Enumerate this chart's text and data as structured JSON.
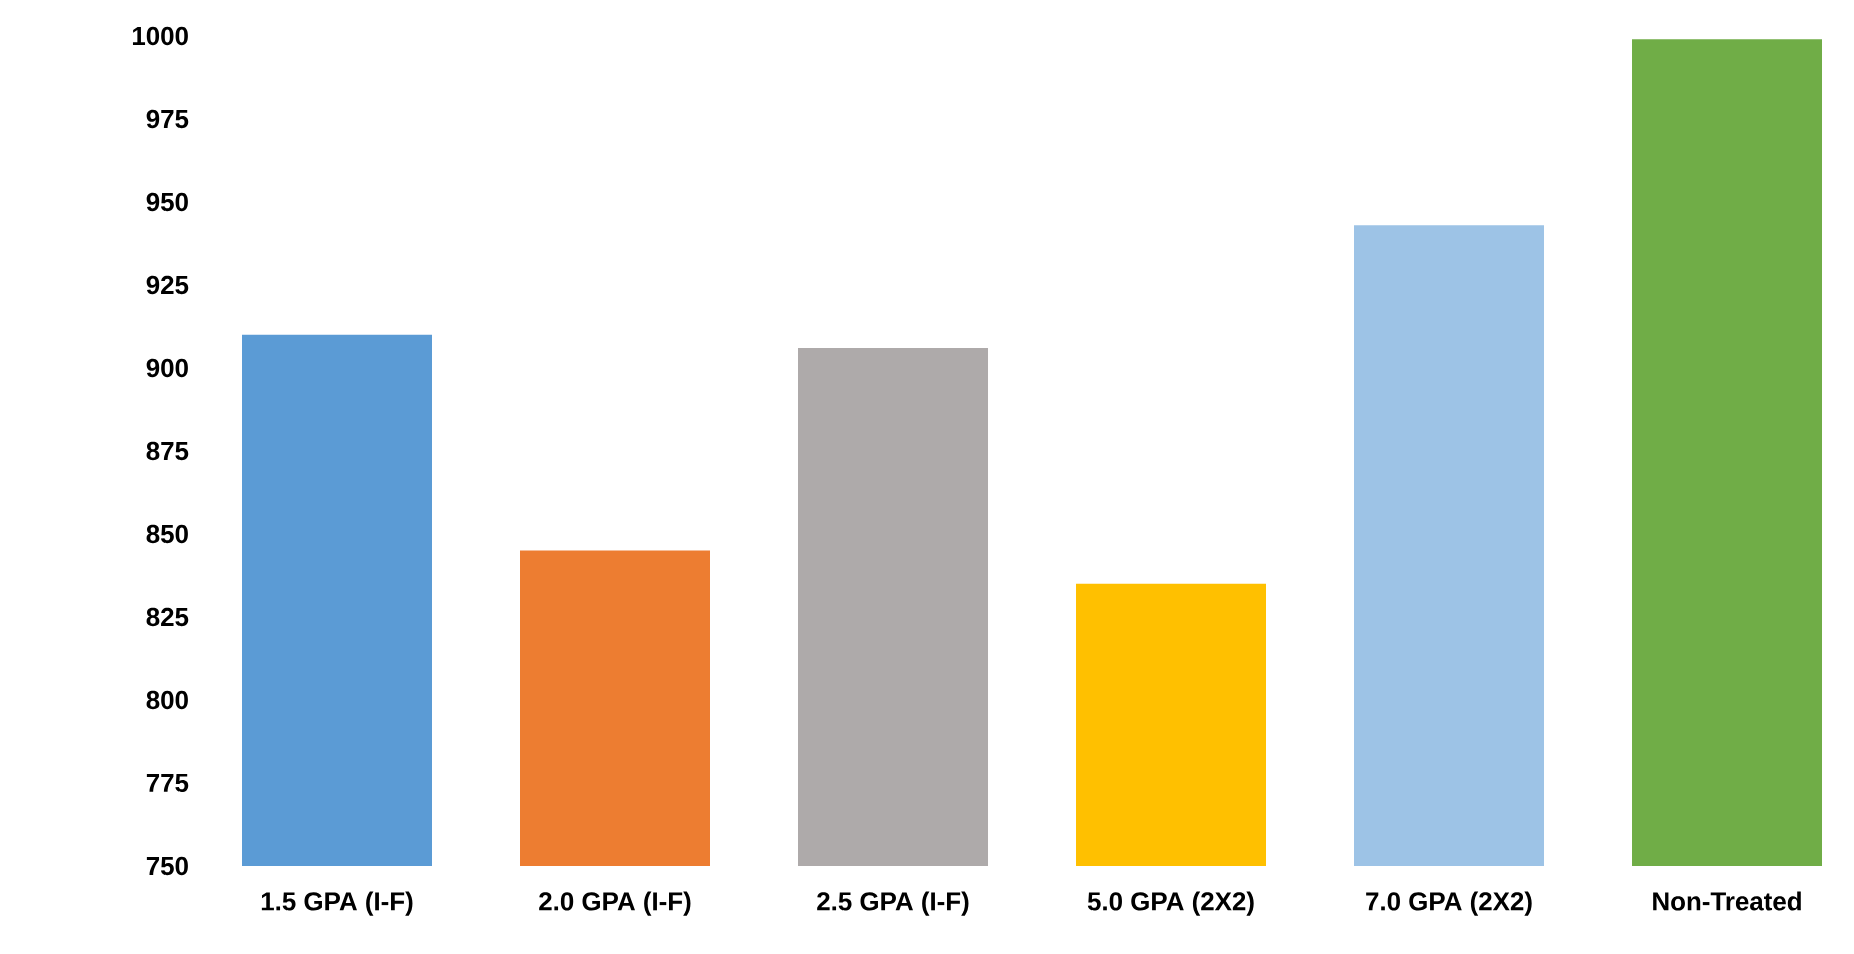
{
  "chart_data": {
    "type": "bar",
    "categories": [
      "1.5 GPA (I-F)",
      "2.0 GPA (I-F)",
      "2.5 GPA (I-F)",
      "5.0 GPA (2X2)",
      "7.0 GPA (2X2)",
      "Non-Treated"
    ],
    "values": [
      910,
      845,
      906,
      835,
      943,
      999
    ],
    "colors": [
      "#5b9bd5",
      "#ed7d31",
      "#aeaaaa",
      "#ffc000",
      "#9dc3e6",
      "#70ad47"
    ],
    "ylim": [
      750,
      1000
    ],
    "yticks": [
      750,
      775,
      800,
      825,
      850,
      875,
      900,
      925,
      950,
      975,
      1000
    ]
  }
}
